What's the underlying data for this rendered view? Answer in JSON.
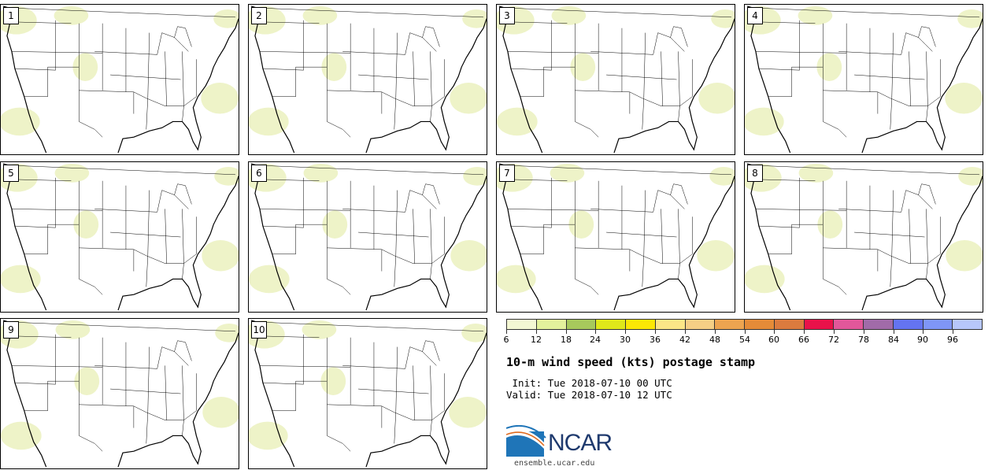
{
  "panels": [
    "1",
    "2",
    "3",
    "4",
    "5",
    "6",
    "7",
    "8",
    "9",
    "10"
  ],
  "colorbar": {
    "colors": [
      "#f4f7d3",
      "#e3f19c",
      "#a7c95c",
      "#dfe81a",
      "#fbe705",
      "#fbe687",
      "#f5cf85",
      "#eda450",
      "#e58b38",
      "#dc7b3e",
      "#e9124a",
      "#e2579a",
      "#a16ba9",
      "#6474f1",
      "#7f96f7",
      "#b7c7fb"
    ],
    "labels": [
      "6",
      "12",
      "18",
      "24",
      "30",
      "36",
      "42",
      "48",
      "54",
      "60",
      "66",
      "72",
      "78",
      "84",
      "90",
      "96"
    ]
  },
  "title": "10-m wind speed (kts) postage stamp",
  "init": " Init: Tue 2018-07-10 00 UTC",
  "valid": "Valid: Tue 2018-07-10 12 UTC",
  "logo": {
    "text": "NCAR",
    "url": "ensemble.ucar.edu"
  },
  "colors": {
    "map_line": "#000000",
    "wind_light": "#eef3c8"
  }
}
